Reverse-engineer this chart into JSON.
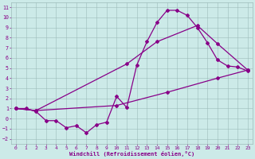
{
  "xlabel": "Windchill (Refroidissement éolien,°C)",
  "background_color": "#cceae8",
  "grid_color": "#9dbcba",
  "line_color": "#880088",
  "xlim": [
    -0.5,
    23.5
  ],
  "ylim": [
    -2.5,
    11.5
  ],
  "xticks": [
    0,
    1,
    2,
    3,
    4,
    5,
    6,
    7,
    8,
    9,
    10,
    11,
    12,
    13,
    14,
    15,
    16,
    17,
    18,
    19,
    20,
    21,
    22,
    23
  ],
  "yticks": [
    -2,
    -1,
    0,
    1,
    2,
    3,
    4,
    5,
    6,
    7,
    8,
    9,
    10,
    11
  ],
  "line1_x": [
    0,
    1,
    2,
    3,
    4,
    5,
    6,
    7,
    8,
    9,
    10,
    11,
    12,
    13,
    14,
    15,
    16,
    17,
    18,
    19,
    20,
    21,
    22,
    23
  ],
  "line1_y": [
    1.0,
    1.0,
    0.7,
    -0.2,
    -0.2,
    -0.9,
    -0.7,
    -1.4,
    -0.6,
    -0.35,
    2.2,
    1.1,
    5.3,
    7.6,
    9.5,
    10.7,
    10.7,
    10.2,
    9.0,
    7.5,
    5.8,
    5.2,
    5.1,
    4.7
  ],
  "line2_x": [
    0,
    2,
    10,
    15,
    20,
    23
  ],
  "line2_y": [
    1.0,
    0.8,
    1.3,
    2.6,
    4.0,
    4.8
  ],
  "line3_x": [
    0,
    2,
    11,
    14,
    18,
    20,
    23
  ],
  "line3_y": [
    1.0,
    0.8,
    5.4,
    7.6,
    9.2,
    7.4,
    4.8
  ]
}
